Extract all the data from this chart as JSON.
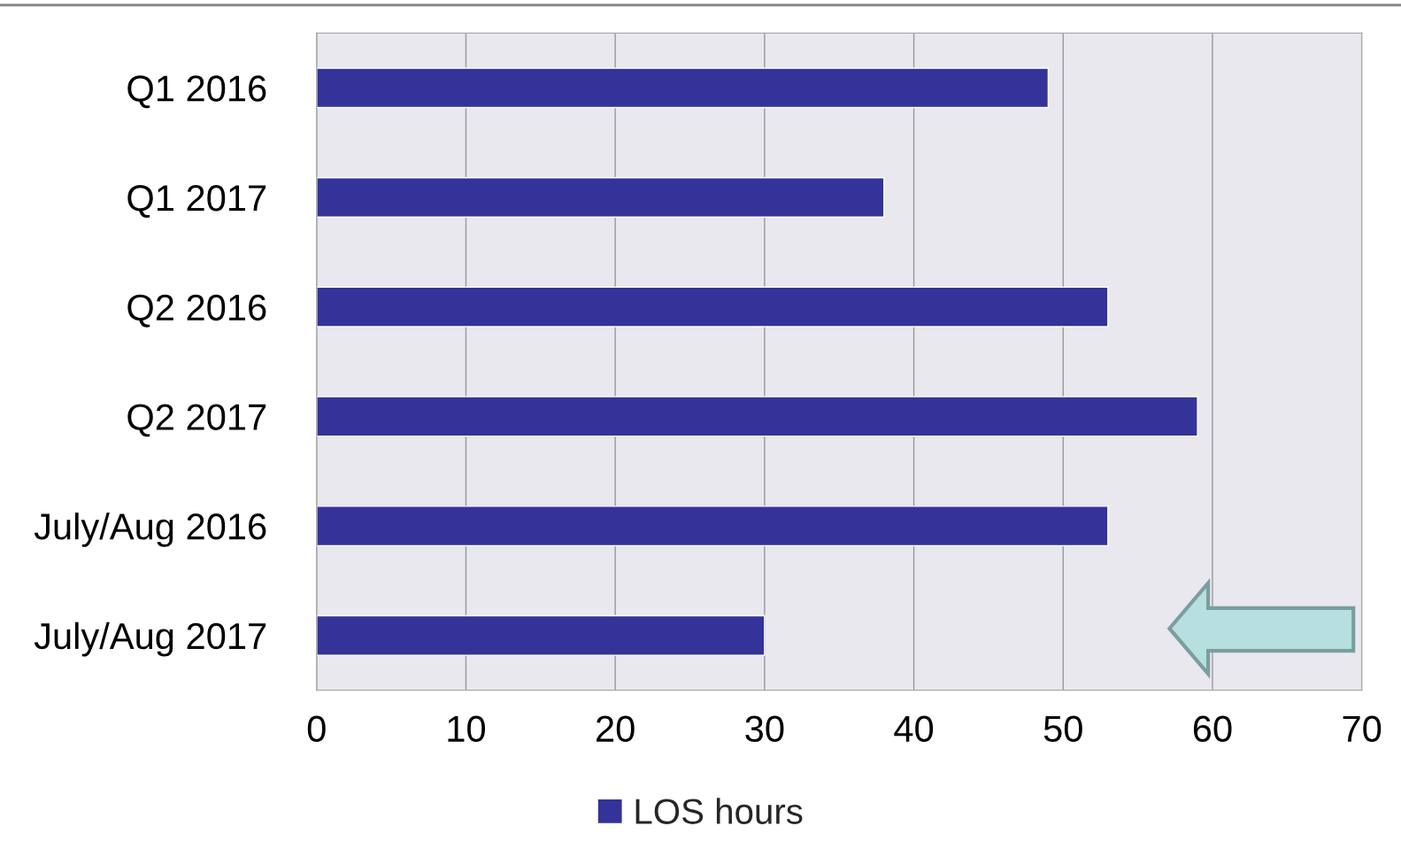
{
  "chart_data": {
    "type": "bar",
    "orientation": "horizontal",
    "categories": [
      "Q1 2016",
      "Q1 2017",
      "Q2 2016",
      "Q2 2017",
      "July/Aug 2016",
      "July/Aug 2017"
    ],
    "series": [
      {
        "name": "LOS hours",
        "color": "#333399",
        "values": [
          49,
          38,
          53,
          59,
          53,
          30
        ]
      }
    ],
    "xlim": [
      0,
      70
    ],
    "xticks": [
      0,
      10,
      20,
      30,
      40,
      50,
      60,
      70
    ],
    "grid": "x",
    "legend": "bottom"
  }
}
